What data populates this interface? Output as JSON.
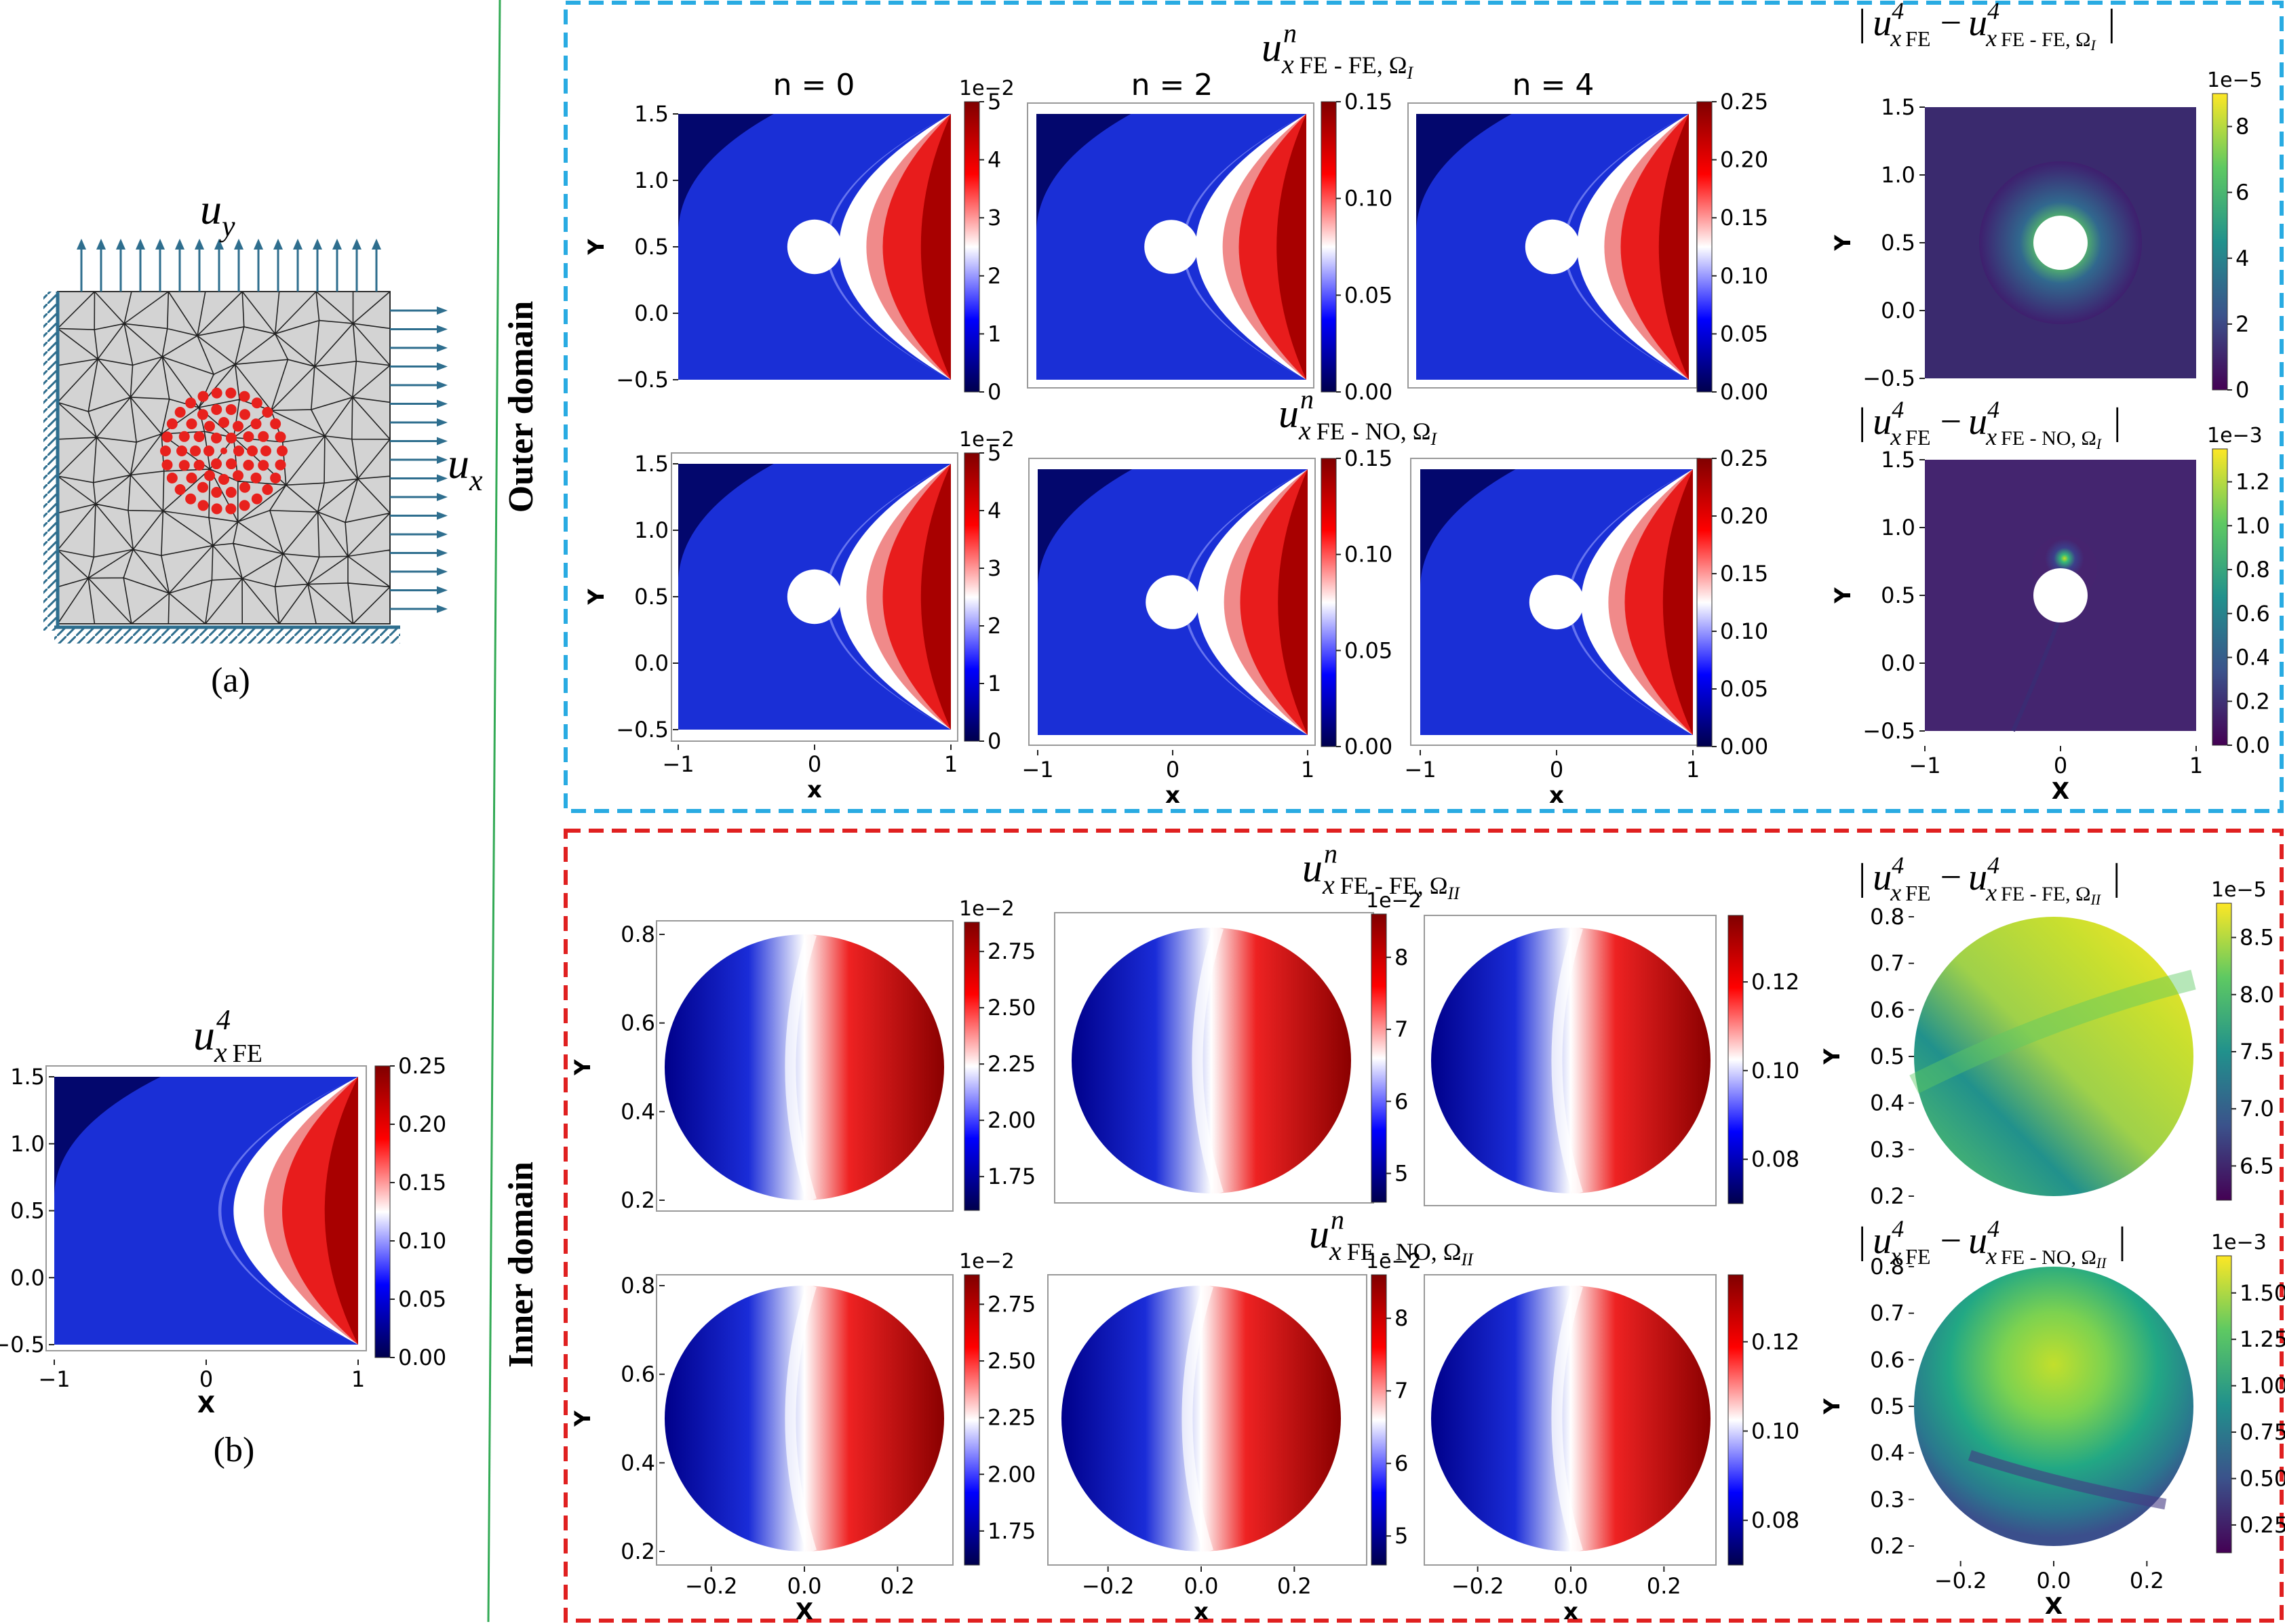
{
  "labels": {
    "sub_a": "(a)",
    "sub_b": "(b)",
    "outer_domain": "Outer domain",
    "inner_domain": "Inner domain",
    "col_n0": "n = 0",
    "col_n2": "n = 2",
    "col_n4": "n = 4",
    "uy": "u",
    "uy_sub": "y",
    "ux": "u",
    "ux_sub": "x",
    "u_symbol": "u",
    "sup_n": "n",
    "sup_4": "4",
    "x_sub": "x",
    "fe_sub": "FE",
    "fefe_omega1": "FE - FE, Ω",
    "feno_omega1": "FE - NO, Ω",
    "omega_I": "I",
    "omega_II": "II",
    "abs_bar": "|",
    "minus": "−",
    "axis_x": "x",
    "axis_y": "Y",
    "axis_X": "X"
  },
  "colors": {
    "outer_border": "#29abe2",
    "inner_border": "#e02020",
    "divider": "#33aa55",
    "arrow": "#2e6e8e",
    "mesh_fill": "#d3d3d3",
    "node": "#e8211d"
  },
  "chart_data": [
    {
      "id": "b",
      "type": "heatmap",
      "title": "u x FE 4",
      "colormap": "seismic",
      "xlim": [
        -1,
        1
      ],
      "ylim": [
        -0.5,
        1.5
      ],
      "xticks": [
        "−1",
        "0",
        "1"
      ],
      "yticks": [
        "−0.5",
        "0.0",
        "0.5",
        "1.0",
        "1.5"
      ],
      "xlabel": "X",
      "ylabel": "Y",
      "colorbar": {
        "min": 0,
        "max": 0.25,
        "ticks": [
          "0.00",
          "0.05",
          "0.10",
          "0.15",
          "0.20",
          "0.25"
        ]
      }
    },
    {
      "id": "o-fefe-0",
      "type": "heatmap",
      "colormap": "seismic",
      "domain": "outer",
      "xlim": [
        -1,
        1
      ],
      "ylim": [
        -0.5,
        1.5
      ],
      "yticks": [
        "−0.5",
        "0.0",
        "0.5",
        "1.0",
        "1.5"
      ],
      "ylabel": "Y",
      "colorbar": {
        "min": 0,
        "max": 5,
        "ticks": [
          "0",
          "1",
          "2",
          "3",
          "4",
          "5"
        ],
        "multiplier": "1e−2"
      }
    },
    {
      "id": "o-fefe-2",
      "type": "heatmap",
      "colormap": "seismic",
      "domain": "outer",
      "colorbar": {
        "min": 0,
        "max": 0.15,
        "ticks": [
          "0.00",
          "0.05",
          "0.10",
          "0.15"
        ]
      }
    },
    {
      "id": "o-fefe-4",
      "type": "heatmap",
      "colormap": "seismic",
      "domain": "outer",
      "colorbar": {
        "min": 0,
        "max": 0.25,
        "ticks": [
          "0.00",
          "0.05",
          "0.10",
          "0.15",
          "0.20",
          "0.25"
        ]
      }
    },
    {
      "id": "o-err-fe",
      "type": "heatmap",
      "colormap": "viridis",
      "domain": "outer",
      "yticks": [
        "−0.5",
        "0.0",
        "0.5",
        "1.0",
        "1.5"
      ],
      "ylabel": "Y",
      "colorbar": {
        "min": 0,
        "max": 9,
        "ticks": [
          "0",
          "2",
          "4",
          "6",
          "8"
        ],
        "multiplier": "1e−5"
      }
    },
    {
      "id": "o-feno-0",
      "type": "heatmap",
      "colormap": "seismic",
      "domain": "outer",
      "xticks": [
        "−1",
        "0",
        "1"
      ],
      "yticks": [
        "−0.5",
        "0.0",
        "0.5",
        "1.0",
        "1.5"
      ],
      "xlabel": "x",
      "ylabel": "Y",
      "colorbar": {
        "min": 0,
        "max": 5,
        "ticks": [
          "0",
          "1",
          "2",
          "3",
          "4",
          "5"
        ],
        "multiplier": "1e−2"
      }
    },
    {
      "id": "o-feno-2",
      "type": "heatmap",
      "colormap": "seismic",
      "domain": "outer",
      "xticks": [
        "−1",
        "0",
        "1"
      ],
      "xlabel": "x",
      "colorbar": {
        "min": 0,
        "max": 0.15,
        "ticks": [
          "0.00",
          "0.05",
          "0.10",
          "0.15"
        ]
      }
    },
    {
      "id": "o-feno-4",
      "type": "heatmap",
      "colormap": "seismic",
      "domain": "outer",
      "xticks": [
        "−1",
        "0",
        "1"
      ],
      "xlabel": "x",
      "colorbar": {
        "min": 0,
        "max": 0.25,
        "ticks": [
          "0.00",
          "0.05",
          "0.10",
          "0.15",
          "0.20",
          "0.25"
        ]
      }
    },
    {
      "id": "o-err-no",
      "type": "heatmap",
      "colormap": "viridis",
      "domain": "outer",
      "xticks": [
        "−1",
        "0",
        "1"
      ],
      "yticks": [
        "−0.5",
        "0.0",
        "0.5",
        "1.0",
        "1.5"
      ],
      "xlabel": "X",
      "ylabel": "Y",
      "colorbar": {
        "min": 0,
        "max": 1.35,
        "ticks": [
          "0.0",
          "0.2",
          "0.4",
          "0.6",
          "0.8",
          "1.0",
          "1.2"
        ],
        "multiplier": "1e−3"
      }
    },
    {
      "id": "i-fefe-0",
      "type": "heatmap",
      "colormap": "seismic",
      "domain": "inner",
      "yticks": [
        "0.2",
        "0.4",
        "0.6",
        "0.8"
      ],
      "ylabel": "Y",
      "colorbar": {
        "min": 1.6,
        "max": 2.88,
        "ticks": [
          "1.75",
          "2.00",
          "2.25",
          "2.50",
          "2.75"
        ],
        "multiplier": "1e−2"
      }
    },
    {
      "id": "i-fefe-2",
      "type": "heatmap",
      "colormap": "seismic",
      "domain": "inner",
      "colorbar": {
        "min": 4.6,
        "max": 8.6,
        "ticks": [
          "5",
          "6",
          "7",
          "8"
        ],
        "multiplier": "1e−2"
      }
    },
    {
      "id": "i-fefe-4",
      "type": "heatmap",
      "colormap": "seismic",
      "domain": "inner",
      "colorbar": {
        "min": 0.07,
        "max": 0.135,
        "ticks": [
          "0.08",
          "0.10",
          "0.12"
        ]
      }
    },
    {
      "id": "i-err-fe",
      "type": "heatmap",
      "colormap": "viridis",
      "domain": "inner",
      "yticks": [
        "0.2",
        "0.3",
        "0.4",
        "0.5",
        "0.6",
        "0.7",
        "0.8"
      ],
      "ylabel": "Y",
      "colorbar": {
        "min": 6.2,
        "max": 8.8,
        "ticks": [
          "6.5",
          "7.0",
          "7.5",
          "8.0",
          "8.5"
        ],
        "multiplier": "1e−5"
      }
    },
    {
      "id": "i-feno-0",
      "type": "heatmap",
      "colormap": "seismic",
      "domain": "inner",
      "xticks": [
        "−0.2",
        "0.0",
        "0.2"
      ],
      "yticks": [
        "0.2",
        "0.4",
        "0.6",
        "0.8"
      ],
      "xlabel": "X",
      "ylabel": "Y",
      "colorbar": {
        "min": 1.6,
        "max": 2.88,
        "ticks": [
          "1.75",
          "2.00",
          "2.25",
          "2.50",
          "2.75"
        ],
        "multiplier": "1e−2"
      }
    },
    {
      "id": "i-feno-2",
      "type": "heatmap",
      "colormap": "seismic",
      "domain": "inner",
      "xticks": [
        "−0.2",
        "0.0",
        "0.2"
      ],
      "xlabel": "x",
      "colorbar": {
        "min": 4.6,
        "max": 8.6,
        "ticks": [
          "5",
          "6",
          "7",
          "8"
        ],
        "multiplier": "1e−2"
      }
    },
    {
      "id": "i-feno-4",
      "type": "heatmap",
      "colormap": "seismic",
      "domain": "inner",
      "xticks": [
        "−0.2",
        "0.0",
        "0.2"
      ],
      "xlabel": "x",
      "colorbar": {
        "min": 0.07,
        "max": 0.135,
        "ticks": [
          "0.08",
          "0.10",
          "0.12"
        ]
      }
    },
    {
      "id": "i-err-no",
      "type": "heatmap",
      "colormap": "viridis",
      "domain": "inner",
      "xticks": [
        "−0.2",
        "0.0",
        "0.2"
      ],
      "yticks": [
        "0.2",
        "0.3",
        "0.4",
        "0.5",
        "0.6",
        "0.7",
        "0.8"
      ],
      "xlabel": "X",
      "ylabel": "Y",
      "colorbar": {
        "min": 0.1,
        "max": 1.7,
        "ticks": [
          "0.25",
          "0.50",
          "0.75",
          "1.00",
          "1.25",
          "1.50"
        ],
        "multiplier": "1e−3"
      }
    }
  ]
}
